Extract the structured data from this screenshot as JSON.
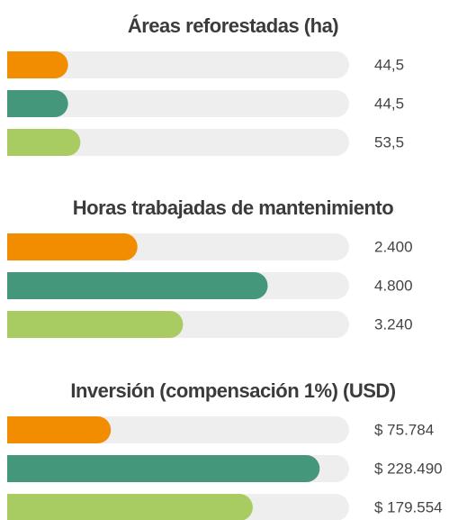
{
  "chart_data": [
    {
      "type": "bar",
      "orientation": "horizontal",
      "title": "Áreas reforestadas (ha)",
      "values": [
        44.5,
        44.5,
        53.5
      ],
      "value_labels": [
        "44,5",
        "44,5",
        "53,5"
      ],
      "colors": [
        "#f28c00",
        "#44977a",
        "#a8cc62"
      ],
      "track_color": "#eeeeee",
      "xlim": [
        0,
        250
      ]
    },
    {
      "type": "bar",
      "orientation": "horizontal",
      "title": "Horas trabajadas de mantenimiento",
      "values": [
        2400,
        4800,
        3240
      ],
      "value_labels": [
        "2.400",
        "4.800",
        "3.240"
      ],
      "colors": [
        "#f28c00",
        "#44977a",
        "#a8cc62"
      ],
      "track_color": "#eeeeee",
      "xlim": [
        0,
        6300
      ]
    },
    {
      "type": "bar",
      "orientation": "horizontal",
      "title": "Inversión (compensación 1%) (USD)",
      "values": [
        75784,
        228490,
        179554
      ],
      "value_labels": [
        "$ 75.784",
        "$ 228.490",
        "$ 179.554"
      ],
      "colors": [
        "#f28c00",
        "#44977a",
        "#a8cc62"
      ],
      "track_color": "#eeeeee",
      "xlim": [
        0,
        250000
      ]
    }
  ]
}
